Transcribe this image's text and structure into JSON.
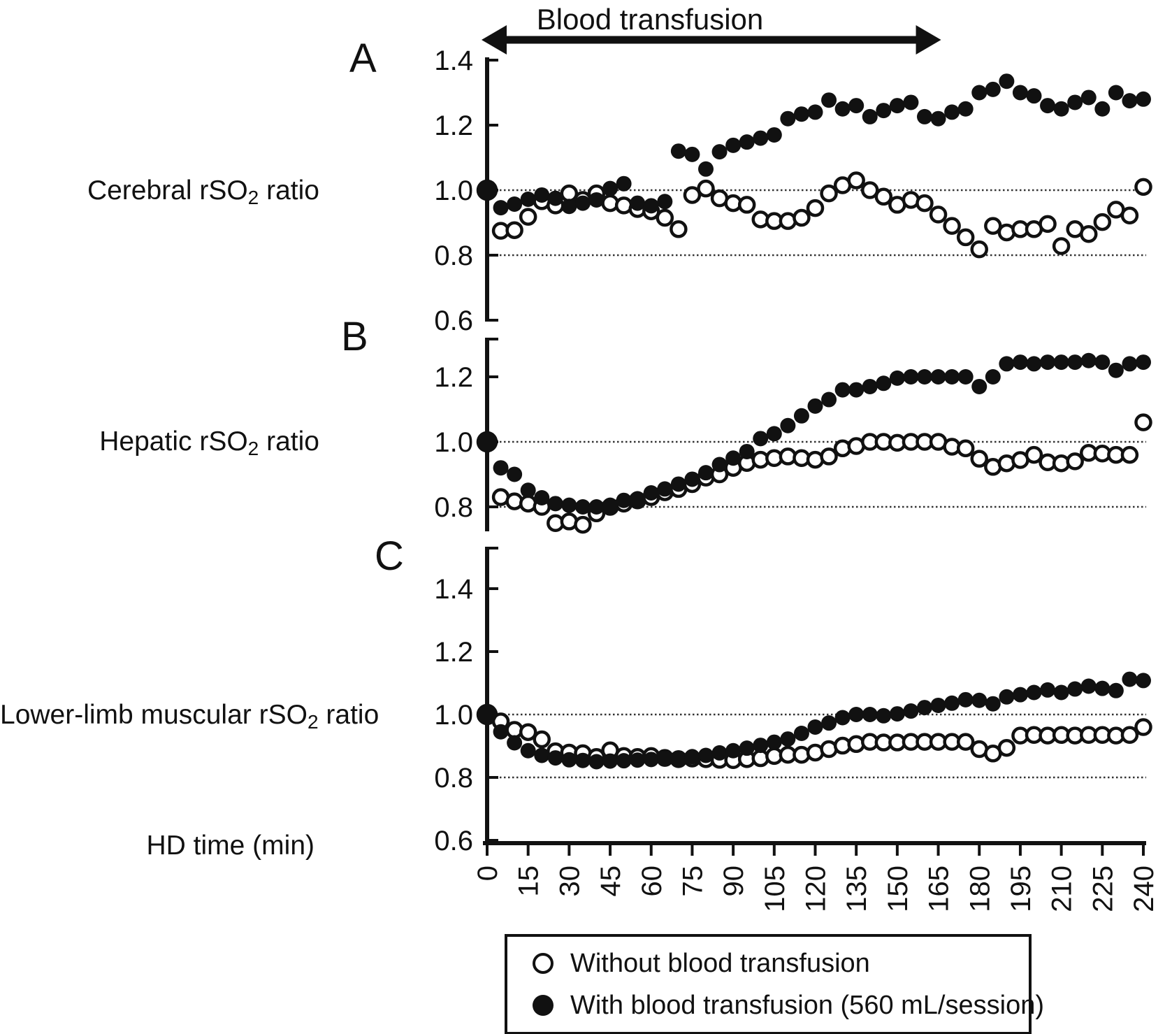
{
  "figure": {
    "title": "Blood transfusion",
    "x_axis_label": "HD time (min)",
    "x_ticks": [
      "0",
      "15",
      "30",
      "45",
      "60",
      "75",
      "90",
      "105",
      "120",
      "135",
      "150",
      "165",
      "180",
      "195",
      "210",
      "225",
      "240"
    ],
    "x_values": [
      0,
      5,
      10,
      15,
      20,
      25,
      30,
      35,
      40,
      45,
      50,
      55,
      60,
      65,
      70,
      75,
      80,
      85,
      90,
      95,
      100,
      105,
      110,
      115,
      120,
      125,
      130,
      135,
      140,
      145,
      150,
      155,
      160,
      165,
      170,
      175,
      180,
      185,
      190,
      195,
      200,
      205,
      210,
      215,
      220,
      225,
      230,
      235,
      240
    ],
    "transfusion_arrow": {
      "label": "Blood transfusion",
      "from_min": 0,
      "to_min": 165,
      "style": "double-headed-arrow"
    },
    "legend": [
      {
        "marker": "open-circle",
        "label": "Without blood transfusion"
      },
      {
        "marker": "filled-circle",
        "label": "With blood transfusion (560 mL/session)"
      }
    ],
    "colors": {
      "ink": "#111111",
      "background": "#ffffff"
    }
  },
  "chart_data": [
    {
      "panel": "A",
      "type": "scatter",
      "ylabel": {
        "pre": "Cerebral rSO",
        "sub": "2",
        "post": " ratio"
      },
      "y_ticks": [
        1.4,
        1.2,
        1.0,
        0.8,
        0.6
      ],
      "ylim": [
        0.6,
        1.4
      ],
      "reference_lines": [
        1.0,
        0.8
      ],
      "grid": false,
      "legend_position": "bottom",
      "series": [
        {
          "name": "Without blood transfusion",
          "marker": "open",
          "values": [
            1.0,
            0.875,
            0.877,
            0.918,
            0.966,
            0.953,
            0.99,
            0.97,
            0.99,
            0.96,
            0.953,
            0.942,
            0.935,
            0.915,
            0.88,
            0.985,
            1.005,
            0.975,
            0.96,
            0.955,
            0.91,
            0.905,
            0.905,
            0.915,
            0.945,
            0.99,
            1.015,
            1.03,
            1.0,
            0.98,
            0.955,
            0.97,
            0.96,
            0.925,
            0.89,
            0.855,
            0.818,
            0.89,
            0.87,
            0.88,
            0.88,
            0.896,
            0.828,
            0.88,
            0.865,
            0.902,
            0.94,
            0.922,
            1.01
          ]
        },
        {
          "name": "With blood transfusion (560 mL/session)",
          "marker": "filled",
          "values": [
            1.0,
            0.946,
            0.957,
            0.972,
            0.985,
            0.975,
            0.95,
            0.96,
            0.97,
            1.005,
            1.02,
            0.96,
            0.952,
            0.965,
            1.12,
            1.11,
            1.065,
            1.118,
            1.138,
            1.148,
            1.16,
            1.17,
            1.22,
            1.234,
            1.24,
            1.277,
            1.25,
            1.26,
            1.226,
            1.245,
            1.26,
            1.27,
            1.226,
            1.22,
            1.24,
            1.25,
            1.3,
            1.31,
            1.335,
            1.3,
            1.29,
            1.26,
            1.25,
            1.27,
            1.285,
            1.25,
            1.3,
            1.275,
            1.28
          ]
        }
      ]
    },
    {
      "panel": "B",
      "type": "scatter",
      "ylabel": {
        "pre": "Hepatic rSO",
        "sub": "2",
        "post": " ratio"
      },
      "y_ticks": [
        1.2,
        1.0,
        0.8
      ],
      "ylim": [
        0.72,
        1.32
      ],
      "reference_lines": [
        1.0,
        0.8
      ],
      "grid": false,
      "series": [
        {
          "name": "Without blood transfusion",
          "marker": "open",
          "values": [
            1.0,
            0.83,
            0.817,
            0.81,
            0.8,
            0.75,
            0.755,
            0.745,
            0.78,
            0.8,
            0.81,
            0.82,
            0.83,
            0.845,
            0.855,
            0.87,
            0.89,
            0.9,
            0.92,
            0.935,
            0.945,
            0.95,
            0.955,
            0.95,
            0.945,
            0.955,
            0.98,
            0.987,
            1.0,
            1.0,
            0.997,
            1.0,
            1.0,
            1.0,
            0.985,
            0.98,
            0.948,
            0.923,
            0.934,
            0.944,
            0.96,
            0.937,
            0.934,
            0.94,
            0.966,
            0.964,
            0.96,
            0.96,
            1.06
          ]
        },
        {
          "name": "With blood transfusion (560 mL/session)",
          "marker": "filled",
          "values": [
            1.0,
            0.92,
            0.9,
            0.851,
            0.828,
            0.81,
            0.805,
            0.8,
            0.8,
            0.805,
            0.82,
            0.825,
            0.843,
            0.855,
            0.87,
            0.885,
            0.905,
            0.93,
            0.95,
            0.97,
            1.01,
            1.025,
            1.05,
            1.08,
            1.11,
            1.13,
            1.16,
            1.16,
            1.17,
            1.18,
            1.196,
            1.2,
            1.2,
            1.2,
            1.2,
            1.2,
            1.17,
            1.2,
            1.24,
            1.245,
            1.24,
            1.245,
            1.245,
            1.245,
            1.25,
            1.245,
            1.22,
            1.24,
            1.245
          ]
        }
      ]
    },
    {
      "panel": "C",
      "type": "scatter",
      "ylabel": {
        "pre": "Lower-limb muscular rSO",
        "sub": "2",
        "post": " ratio"
      },
      "y_ticks": [
        1.4,
        1.2,
        1.0,
        0.8,
        0.6
      ],
      "ylim": [
        0.6,
        1.5
      ],
      "reference_lines": [
        1.0,
        0.8
      ],
      "grid": false,
      "series": [
        {
          "name": "Without blood transfusion",
          "marker": "open",
          "values": [
            1.0,
            0.978,
            0.951,
            0.944,
            0.921,
            0.883,
            0.879,
            0.877,
            0.865,
            0.886,
            0.868,
            0.865,
            0.868,
            0.862,
            0.858,
            0.86,
            0.858,
            0.856,
            0.855,
            0.858,
            0.861,
            0.868,
            0.872,
            0.872,
            0.879,
            0.89,
            0.901,
            0.906,
            0.913,
            0.911,
            0.911,
            0.913,
            0.913,
            0.913,
            0.913,
            0.913,
            0.89,
            0.876,
            0.894,
            0.933,
            0.935,
            0.933,
            0.935,
            0.933,
            0.935,
            0.935,
            0.933,
            0.935,
            0.96
          ]
        },
        {
          "name": "With blood transfusion (560 mL/session)",
          "marker": "filled",
          "values": [
            1.0,
            0.945,
            0.91,
            0.885,
            0.87,
            0.862,
            0.856,
            0.854,
            0.85,
            0.852,
            0.853,
            0.855,
            0.857,
            0.859,
            0.862,
            0.866,
            0.87,
            0.878,
            0.885,
            0.893,
            0.902,
            0.912,
            0.922,
            0.94,
            0.96,
            0.973,
            0.99,
            1.0,
            1.0,
            0.996,
            1.002,
            1.011,
            1.022,
            1.029,
            1.036,
            1.047,
            1.045,
            1.034,
            1.056,
            1.063,
            1.07,
            1.078,
            1.07,
            1.081,
            1.09,
            1.083,
            1.076,
            1.112,
            1.108
          ]
        }
      ]
    }
  ]
}
